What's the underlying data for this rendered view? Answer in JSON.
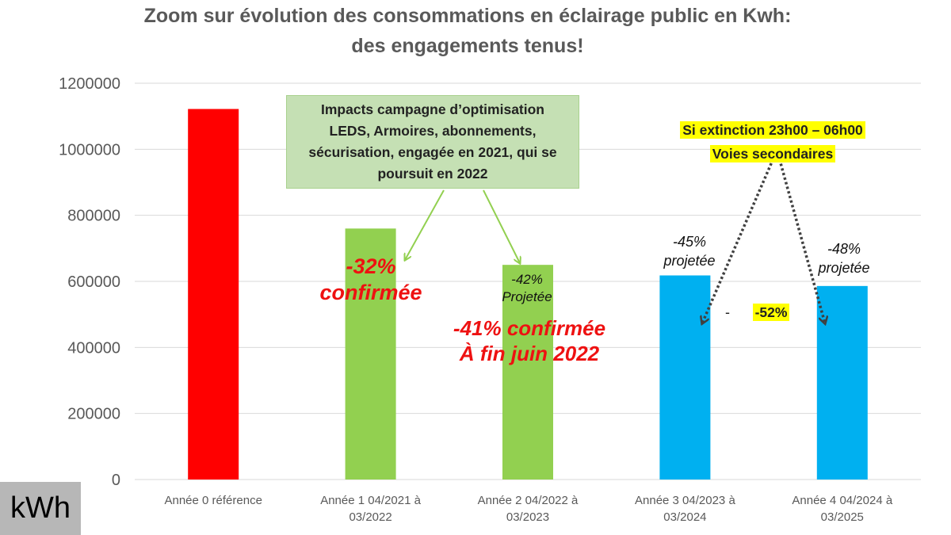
{
  "chart_data": {
    "type": "bar",
    "title": "Zoom sur évolution des consommations en éclairage public en Kwh:",
    "subtitle": "des engagements tenus!",
    "categories": [
      [
        "Année 0 référence"
      ],
      [
        "Année 1 04/2021 à",
        "03/2022"
      ],
      [
        "Année 2 04/2022 à",
        "03/2023"
      ],
      [
        "Année 3 04/2023 à",
        "03/2024"
      ],
      [
        "Année 4 04/2024 à",
        "03/2025"
      ]
    ],
    "values": [
      1122000,
      760000,
      650000,
      618000,
      586000
    ],
    "bar_colors": [
      "#ff0000",
      "#92d050",
      "#92d050",
      "#00b0f0",
      "#00b0f0"
    ],
    "ylim": [
      0,
      1200000
    ],
    "yticks": [
      0,
      200000,
      400000,
      600000,
      800000,
      1000000,
      1200000
    ],
    "grid": true,
    "legend": "none",
    "unit_label": "kWh",
    "annotations": {
      "campaign_box": [
        "Impacts campagne d’optimisation",
        "LEDS, Armoires, abonnements,",
        "sécurisation, engagée en 2021, qui se",
        "poursuit en 2022"
      ],
      "extinction_box": [
        "Si extinction 23h00 – 06h00",
        "Voies secondaires"
      ],
      "year1_label": [
        "-32%",
        "confirmée"
      ],
      "year2_projected": [
        "-42%",
        "Projetée"
      ],
      "year2_confirmed": [
        "-41% confirmée",
        "À fin juin 2022"
      ],
      "year3_label": [
        "-45%",
        "projetée"
      ],
      "year4_label": [
        "-48%",
        "projetée"
      ],
      "dash": "-",
      "combined": "-52%"
    }
  }
}
